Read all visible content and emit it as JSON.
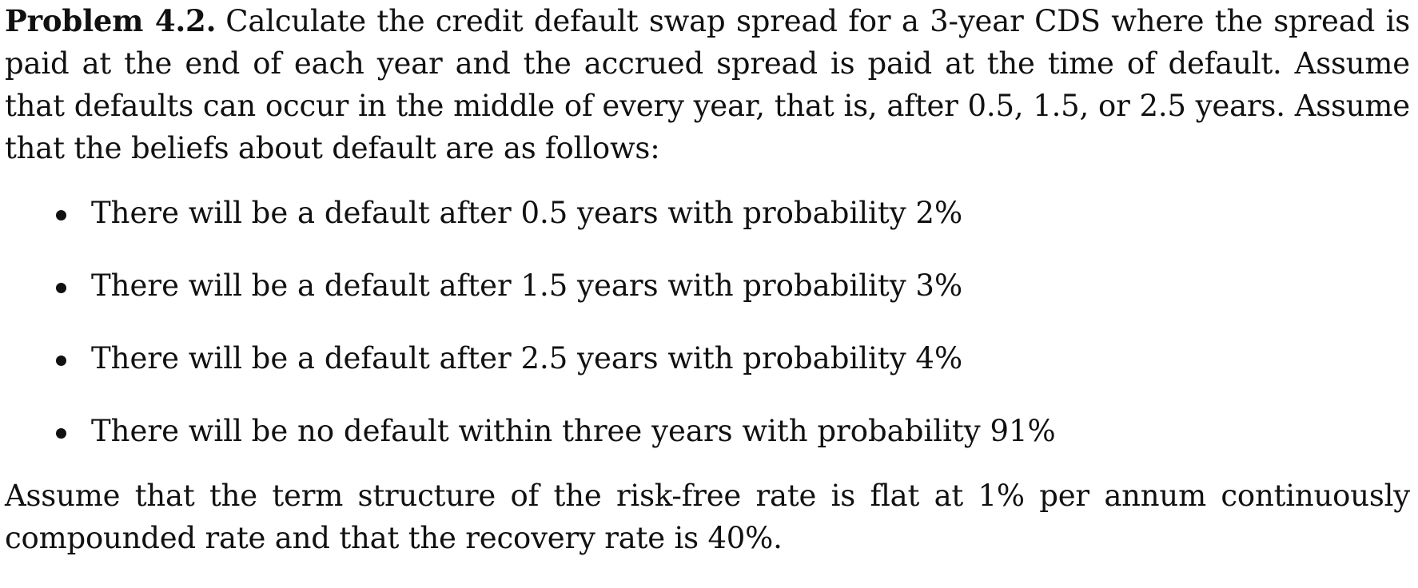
{
  "problem": {
    "heading": "Problem 4.2.",
    "intro": "Calculate the credit default swap spread for a 3-year CDS where the spread is paid at the end of each year and the accrued spread is paid at the time of default. Assume that defaults can occur in the middle of every year, that is, after 0.5, 1.5, or 2.5 years. Assume that the beliefs about default are as follows:",
    "bullets": [
      "There will be a default after 0.5 years with probability 2%",
      "There will be a default after 1.5 years with probability 3%",
      "There will be a default after 2.5 years with probability 4%",
      "There will be no default within three years with probability 91%"
    ],
    "closing": "Assume that the term structure of the risk-free rate is flat at 1% per annum continuously compounded rate and that the recovery rate is 40%."
  }
}
